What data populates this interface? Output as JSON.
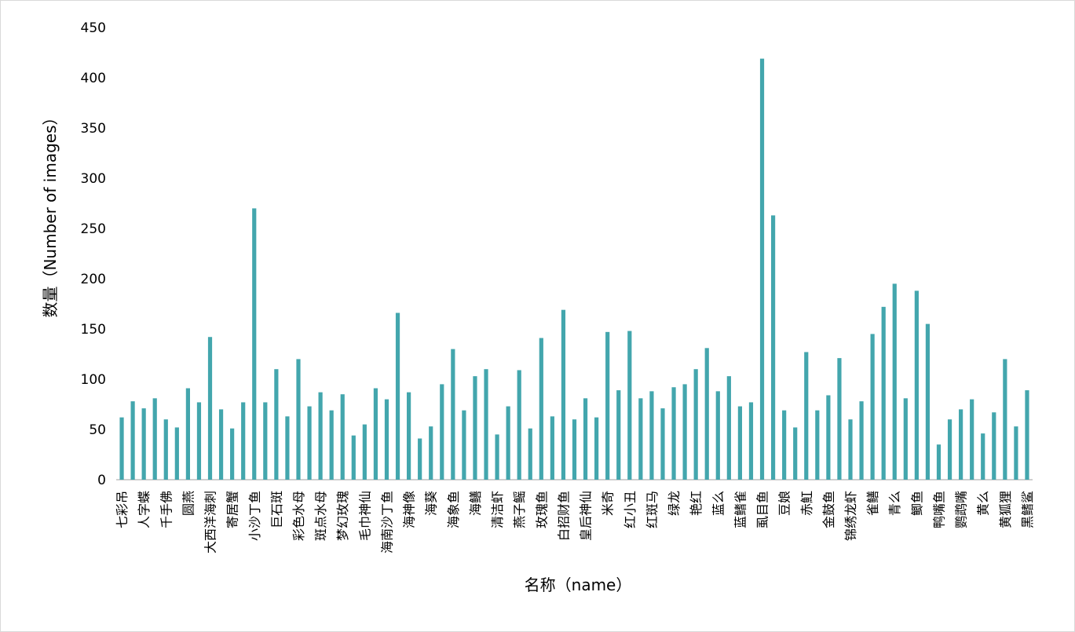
{
  "chart_data": {
    "type": "bar",
    "x_label": "名称（name）",
    "y_label": "数量（Number of images）",
    "categories": [
      "七彩吊",
      null,
      "人字蝶",
      null,
      "千手佛",
      null,
      "圆燕",
      null,
      "大西洋海刺",
      null,
      "寄居蟹",
      null,
      "小沙丁鱼",
      null,
      "巨石斑",
      null,
      "彩色水母",
      null,
      "斑点水母",
      null,
      "梦幻玫瑰",
      null,
      "毛巾神仙",
      null,
      "海南沙丁鱼",
      null,
      "海神像",
      null,
      "海葵",
      null,
      "海象鱼",
      null,
      "海鳝",
      null,
      "清洁虾",
      null,
      "燕子鳐",
      null,
      "玫瑰鱼",
      null,
      "白招财鱼",
      null,
      "皇后神仙",
      null,
      "米奇",
      null,
      "红小丑",
      null,
      "红斑马",
      null,
      "绿龙",
      null,
      "艳红",
      null,
      "蓝么",
      null,
      "蓝鳍雀",
      null,
      "虱目鱼",
      null,
      "豆娘",
      null,
      "赤魟",
      null,
      "金鼓鱼",
      null,
      "锦绣龙虾",
      null,
      "雀鳝",
      null,
      "青么",
      null,
      "鲫鱼",
      null,
      "鸭嘴鱼",
      null,
      "鹦鹉嘴",
      null,
      "黄么",
      null,
      "黄狐狸",
      null,
      "黑鳍鲨"
    ],
    "values": [
      62,
      78,
      71,
      81,
      60,
      52,
      91,
      77,
      142,
      70,
      51,
      77,
      270,
      77,
      110,
      63,
      120,
      73,
      87,
      69,
      85,
      44,
      55,
      91,
      80,
      166,
      87,
      41,
      53,
      95,
      130,
      69,
      103,
      110,
      45,
      73,
      109,
      51,
      141,
      63,
      169,
      60,
      81,
      62,
      147,
      89,
      148,
      81,
      88,
      71,
      92,
      95,
      110,
      131,
      88,
      103,
      73,
      77,
      419,
      263,
      69,
      52,
      127,
      69,
      84,
      121,
      60,
      78,
      145,
      172,
      195,
      81,
      188,
      155,
      35,
      60,
      70,
      80,
      46,
      67,
      120,
      53,
      89
    ],
    "color": "#43a6ad",
    "ylim": [
      0,
      450
    ],
    "yticks": [
      0,
      50,
      100,
      150,
      200,
      250,
      300,
      350,
      400,
      450
    ],
    "grid": false
  }
}
